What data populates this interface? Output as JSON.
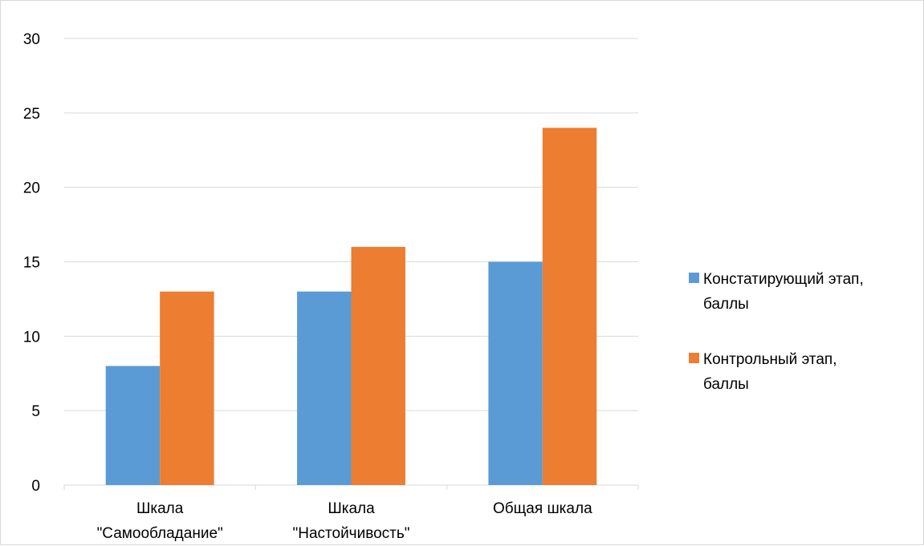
{
  "chart_data": {
    "type": "bar",
    "title": "",
    "xlabel": "",
    "ylabel": "",
    "categories": [
      [
        "Шкала",
        "\"Самообладание\""
      ],
      [
        "Шкала",
        "\"Настойчивость\""
      ],
      [
        "Общая шкала"
      ]
    ],
    "series": [
      {
        "name": "Констатирующий этап, баллы",
        "legend_lines": [
          "Констатирующий этап,",
          "баллы"
        ],
        "color": "#5B9BD5",
        "values": [
          8,
          13,
          15
        ]
      },
      {
        "name": "Контрольный этап, баллы",
        "legend_lines": [
          "Контрольный этап,",
          "баллы"
        ],
        "color": "#ED7D31",
        "values": [
          13,
          16,
          24
        ]
      }
    ],
    "ylim": [
      0,
      30
    ],
    "yticks": [
      0,
      5,
      10,
      15,
      20,
      25,
      30
    ],
    "grid": true,
    "legend_position": "right"
  }
}
